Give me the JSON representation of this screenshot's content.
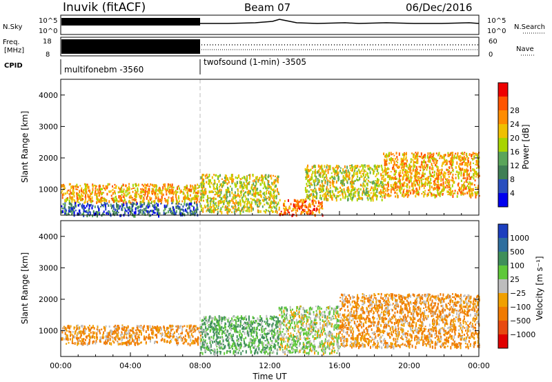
{
  "header": {
    "station": "Inuvik (fitACF)",
    "beam": "Beam 07",
    "date": "06/Dec/2016"
  },
  "panels": {
    "nsky_label": "N.Sky",
    "nsky_ticks": [
      "10^5",
      "10^0"
    ],
    "nsky_right_ticks": [
      "10^5",
      "10^0"
    ],
    "nsearch_label": "N.Search",
    "freq_label_1": "Freq.",
    "freq_label_2": "[MHz]",
    "freq_ticks": [
      "18",
      "8"
    ],
    "nave_ticks": [
      "60",
      "0"
    ],
    "nave_label": "Nave",
    "cpid_label": "CPID",
    "cpid_1": "multifonebm  -3560",
    "cpid_2": "twofsound (1-min) -3505"
  },
  "chart_data": [
    {
      "type": "heatmap",
      "name": "power",
      "ylabel": "Slant Range [km]",
      "yticks": [
        "1000",
        "2000",
        "3000",
        "4000"
      ],
      "ylim": [
        180,
        4500
      ],
      "xlim_hours": [
        0,
        24
      ],
      "colorbar_label": "Power [dB]",
      "colorbar_ticks": [
        "4",
        "8",
        "12",
        "16",
        "20",
        "24",
        "28"
      ],
      "colorbar_colors": [
        "#0000ee",
        "#2a4fbf",
        "#3f7f55",
        "#5aa55a",
        "#a8d400",
        "#f0c000",
        "#ff8c00",
        "#ff5500",
        "#ee0000"
      ],
      "patches": [
        {
          "t": [
            0.0,
            8.0
          ],
          "r": [
            600,
            1200
          ],
          "v": 24
        },
        {
          "t": [
            0.0,
            8.0
          ],
          "r": [
            200,
            600
          ],
          "v": 8
        },
        {
          "t": [
            8.0,
            12.5
          ],
          "r": [
            300,
            1500
          ],
          "v": 20
        },
        {
          "t": [
            12.5,
            15.0
          ],
          "r": [
            200,
            700
          ],
          "v": 28
        },
        {
          "t": [
            14.0,
            18.5
          ],
          "r": [
            700,
            1800
          ],
          "v": 20
        },
        {
          "t": [
            18.5,
            24.0
          ],
          "r": [
            800,
            2200
          ],
          "v": 24
        }
      ]
    },
    {
      "type": "heatmap",
      "name": "velocity",
      "ylabel": "Slant Range [km]",
      "yticks": [
        "1000",
        "2000",
        "3000",
        "4000"
      ],
      "ylim": [
        180,
        4500
      ],
      "xlim_hours": [
        0,
        24
      ],
      "xticks": [
        "00:00",
        "04:00",
        "08:00",
        "12:00",
        "16:00",
        "20:00",
        "00:00"
      ],
      "xlabel": "Time UT",
      "colorbar_label": "Velocity [m s⁻¹]",
      "colorbar_ticks": [
        "1000",
        "500",
        "100",
        "25",
        "−25",
        "−100",
        "−500",
        "−1000"
      ],
      "colorbar_colors": [
        "#1c3fbf",
        "#2e6e9e",
        "#3f8f5a",
        "#5fc83a",
        "#bdbdbd",
        "#f0a000",
        "#f07a00",
        "#e84a10",
        "#e00000"
      ],
      "patches": [
        {
          "t": [
            0.0,
            8.0
          ],
          "r": [
            600,
            1200
          ],
          "v": -100
        },
        {
          "t": [
            8.0,
            12.5
          ],
          "r": [
            300,
            1500
          ],
          "v": 100
        },
        {
          "t": [
            12.5,
            16.0
          ],
          "r": [
            300,
            1800
          ],
          "v": 25
        },
        {
          "t": [
            16.0,
            24.0
          ],
          "r": [
            500,
            2200
          ],
          "v": -100
        }
      ]
    }
  ],
  "colors": {
    "power_high": "#ee0000",
    "velocity_negative": "#f07a00"
  }
}
